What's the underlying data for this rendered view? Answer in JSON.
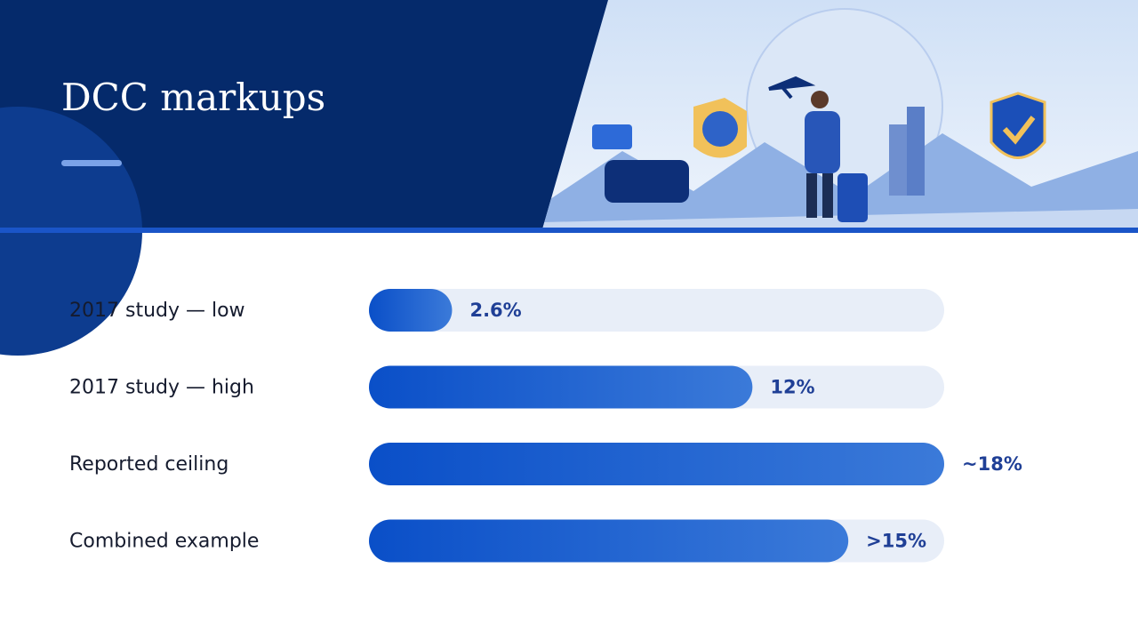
{
  "chart_data": {
    "type": "bar",
    "orientation": "horizontal",
    "title": "DCC markups",
    "categories": [
      "2017 study — low",
      "2017 study — high",
      "Reported ceiling",
      "Combined example"
    ],
    "values": [
      2.6,
      12,
      18,
      15
    ],
    "value_labels": [
      "2.6%",
      "12%",
      "~18%",
      ">15%"
    ],
    "color": "#0b4fca",
    "xlim": [
      0,
      18
    ]
  }
}
